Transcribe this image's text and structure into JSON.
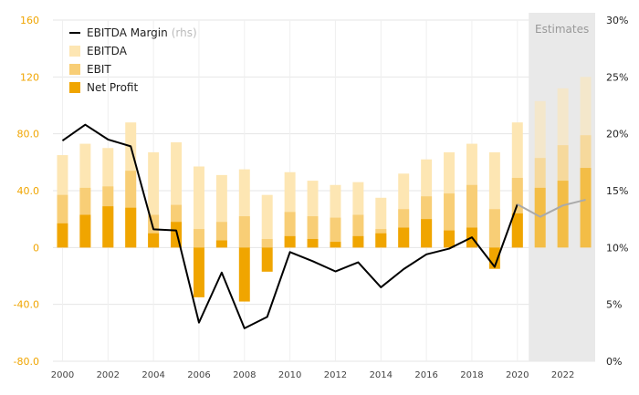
{
  "chart_data": {
    "type": "bar",
    "x": [
      2000,
      2001,
      2002,
      2003,
      2004,
      2005,
      2006,
      2007,
      2008,
      2009,
      2010,
      2011,
      2012,
      2013,
      2014,
      2015,
      2016,
      2017,
      2018,
      2019,
      2020,
      2021,
      2022,
      2023
    ],
    "estimates_from": 2020.5,
    "estimates_label": "Estimates",
    "series": [
      {
        "name": "EBITDA",
        "axis": "left",
        "color": "#fde6b3",
        "values": [
          65,
          73,
          70,
          88,
          67,
          74,
          57,
          51,
          55,
          37,
          53,
          47,
          44,
          46,
          35,
          52,
          62,
          67,
          73,
          67,
          88,
          103,
          112,
          120
        ]
      },
      {
        "name": "EBIT",
        "axis": "left",
        "color": "#f8ce76",
        "values": [
          37,
          42,
          43,
          54,
          23,
          30,
          13,
          18,
          22,
          6,
          25,
          22,
          21,
          23,
          13,
          27,
          36,
          38,
          44,
          27,
          49,
          63,
          72,
          79
        ]
      },
      {
        "name": "Net Profit",
        "axis": "left",
        "color": "#f0a500",
        "values": [
          17,
          23,
          29,
          28,
          10,
          18,
          -35,
          5,
          -38,
          -17,
          8,
          6,
          4,
          8,
          10,
          14,
          20,
          12,
          14,
          -15,
          24,
          42,
          47,
          56
        ]
      },
      {
        "name": "EBITDA Margin",
        "name_suffix": "(rhs)",
        "axis": "right",
        "type": "line",
        "color": "#000000",
        "estimate_color": "#aaaaaa",
        "values": [
          19.4,
          20.8,
          19.5,
          18.9,
          11.6,
          11.5,
          3.4,
          7.8,
          2.9,
          3.9,
          9.6,
          8.8,
          7.9,
          8.7,
          6.5,
          8.1,
          9.4,
          9.9,
          10.9,
          8.3,
          13.8,
          12.7,
          13.7,
          14.2
        ]
      }
    ],
    "y_left": {
      "ylim": [
        -80,
        160
      ],
      "ticks": [
        160,
        120,
        80,
        40,
        0,
        -40,
        -80
      ],
      "tick_labels": [
        "160",
        "120",
        "80.0",
        "40.0",
        "0",
        "-40.0",
        "-80.0"
      ]
    },
    "y_right": {
      "ylim": [
        0,
        30
      ],
      "ticks": [
        30,
        25,
        20,
        15,
        10,
        5,
        0
      ],
      "tick_labels": [
        "30%",
        "25%",
        "20%",
        "15%",
        "10%",
        "5%",
        "0%"
      ]
    },
    "x_tick_labels": [
      "2000",
      "2002",
      "2004",
      "2006",
      "2008",
      "2010",
      "2012",
      "2014",
      "2016",
      "2018",
      "2020",
      "2022"
    ],
    "legend": [
      {
        "label": "EBITDA Margin",
        "sub": "(rhs)",
        "type": "line",
        "color": "#000000"
      },
      {
        "label": "EBITDA",
        "type": "box",
        "color": "#fde6b3"
      },
      {
        "label": "EBIT",
        "type": "box",
        "color": "#f8ce76"
      },
      {
        "label": "Net Profit",
        "type": "box",
        "color": "#f0a500"
      }
    ],
    "legend_position": "top-left",
    "grid": true
  }
}
